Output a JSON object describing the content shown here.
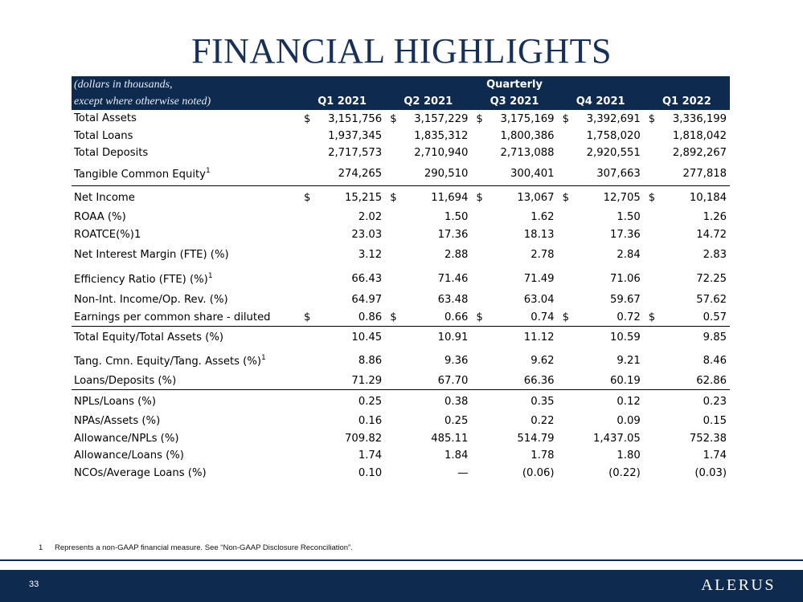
{
  "title": "FINANCIAL HIGHLIGHTS",
  "table": {
    "note_line1": "(dollars in thousands,",
    "note_line2": "except where otherwise noted)",
    "group_header": "Quarterly",
    "columns": [
      "Q1 2021",
      "Q2 2021",
      "Q3 2021",
      "Q4 2021",
      "Q1 2022"
    ],
    "sections": [
      {
        "rows": [
          {
            "label": "Total Assets",
            "values": [
              "3,151,756",
              "3,157,229",
              "3,175,169",
              "3,392,691",
              "3,336,199"
            ],
            "currency": "$",
            "footnote": ""
          },
          {
            "label": "Total Loans",
            "values": [
              "1,937,345",
              "1,835,312",
              "1,800,386",
              "1,758,020",
              "1,818,042"
            ],
            "currency": "",
            "footnote": ""
          },
          {
            "label": "Total Deposits",
            "values": [
              "2,717,573",
              "2,710,940",
              "2,713,088",
              "2,920,551",
              "2,892,267"
            ],
            "currency": "",
            "footnote": ""
          },
          {
            "label": "Tangible Common Equity",
            "values": [
              "274,265",
              "290,510",
              "300,401",
              "307,663",
              "277,818"
            ],
            "currency": "",
            "footnote": "1"
          }
        ]
      },
      {
        "rows": [
          {
            "label": "Net Income",
            "values": [
              "15,215",
              "11,694",
              "13,067",
              "12,705",
              "10,184"
            ],
            "currency": "$",
            "footnote": ""
          },
          {
            "label": "ROAA (%)",
            "values": [
              "2.02",
              "1.50",
              "1.62",
              "1.50",
              "1.26"
            ],
            "currency": "",
            "footnote": ""
          },
          {
            "label": "ROATCE(%)1",
            "values": [
              "23.03",
              "17.36",
              "18.13",
              "17.36",
              "14.72"
            ],
            "currency": "",
            "footnote": ""
          },
          {
            "label": "Net Interest Margin (FTE) (%)",
            "values": [
              "3.12",
              "2.88",
              "2.78",
              "2.84",
              "2.83"
            ],
            "currency": "",
            "footnote": ""
          },
          {
            "label": "Efficiency Ratio (FTE) (%)",
            "values": [
              "66.43",
              "71.46",
              "71.49",
              "71.06",
              "72.25"
            ],
            "currency": "",
            "footnote": "1"
          },
          {
            "label": "Non-Int. Income/Op. Rev. (%)",
            "values": [
              "64.97",
              "63.48",
              "63.04",
              "59.67",
              "57.62"
            ],
            "currency": "",
            "footnote": ""
          },
          {
            "label": "Earnings per common share - diluted",
            "values": [
              "0.86",
              "0.66",
              "0.74",
              "0.72",
              "0.57"
            ],
            "currency": "$",
            "footnote": ""
          }
        ]
      },
      {
        "rows": [
          {
            "label": "Total Equity/Total Assets (%)",
            "values": [
              "10.45",
              "10.91",
              "11.12",
              "10.59",
              "9.85"
            ],
            "currency": "",
            "footnote": ""
          },
          {
            "label": "Tang. Cmn. Equity/Tang. Assets (%)",
            "values": [
              "8.86",
              "9.36",
              "9.62",
              "9.21",
              "8.46"
            ],
            "currency": "",
            "footnote": "1"
          },
          {
            "label": "Loans/Deposits (%)",
            "values": [
              "71.29",
              "67.70",
              "66.36",
              "60.19",
              "62.86"
            ],
            "currency": "",
            "footnote": ""
          }
        ]
      },
      {
        "rows": [
          {
            "label": "NPLs/Loans (%)",
            "values": [
              "0.25",
              "0.38",
              "0.35",
              "0.12",
              "0.23"
            ],
            "currency": "",
            "footnote": ""
          },
          {
            "label": "NPAs/Assets (%)",
            "values": [
              "0.16",
              "0.25",
              "0.22",
              "0.09",
              "0.15"
            ],
            "currency": "",
            "footnote": ""
          },
          {
            "label": "Allowance/NPLs (%)",
            "values": [
              "709.82",
              "485.11",
              "514.79",
              "1,437.05",
              "752.38"
            ],
            "currency": "",
            "footnote": ""
          },
          {
            "label": "Allowance/Loans (%)",
            "values": [
              "1.74",
              "1.84",
              "1.78",
              "1.80",
              "1.74"
            ],
            "currency": "",
            "footnote": ""
          },
          {
            "label": "NCOs/Average Loans (%)",
            "values": [
              "0.10",
              "—",
              "(0.06)",
              "(0.22)",
              "(0.03)"
            ],
            "currency": "",
            "footnote": ""
          }
        ]
      }
    ]
  },
  "footnote": {
    "number": "1",
    "text": "Represents a non-GAAP financial measure. See “Non-GAAP Disclosure Reconciliation”."
  },
  "footer": {
    "page_number": "33",
    "logo_text": "ALERUS"
  },
  "colors": {
    "navy": "#0f2a4f",
    "title": "#16305a"
  }
}
